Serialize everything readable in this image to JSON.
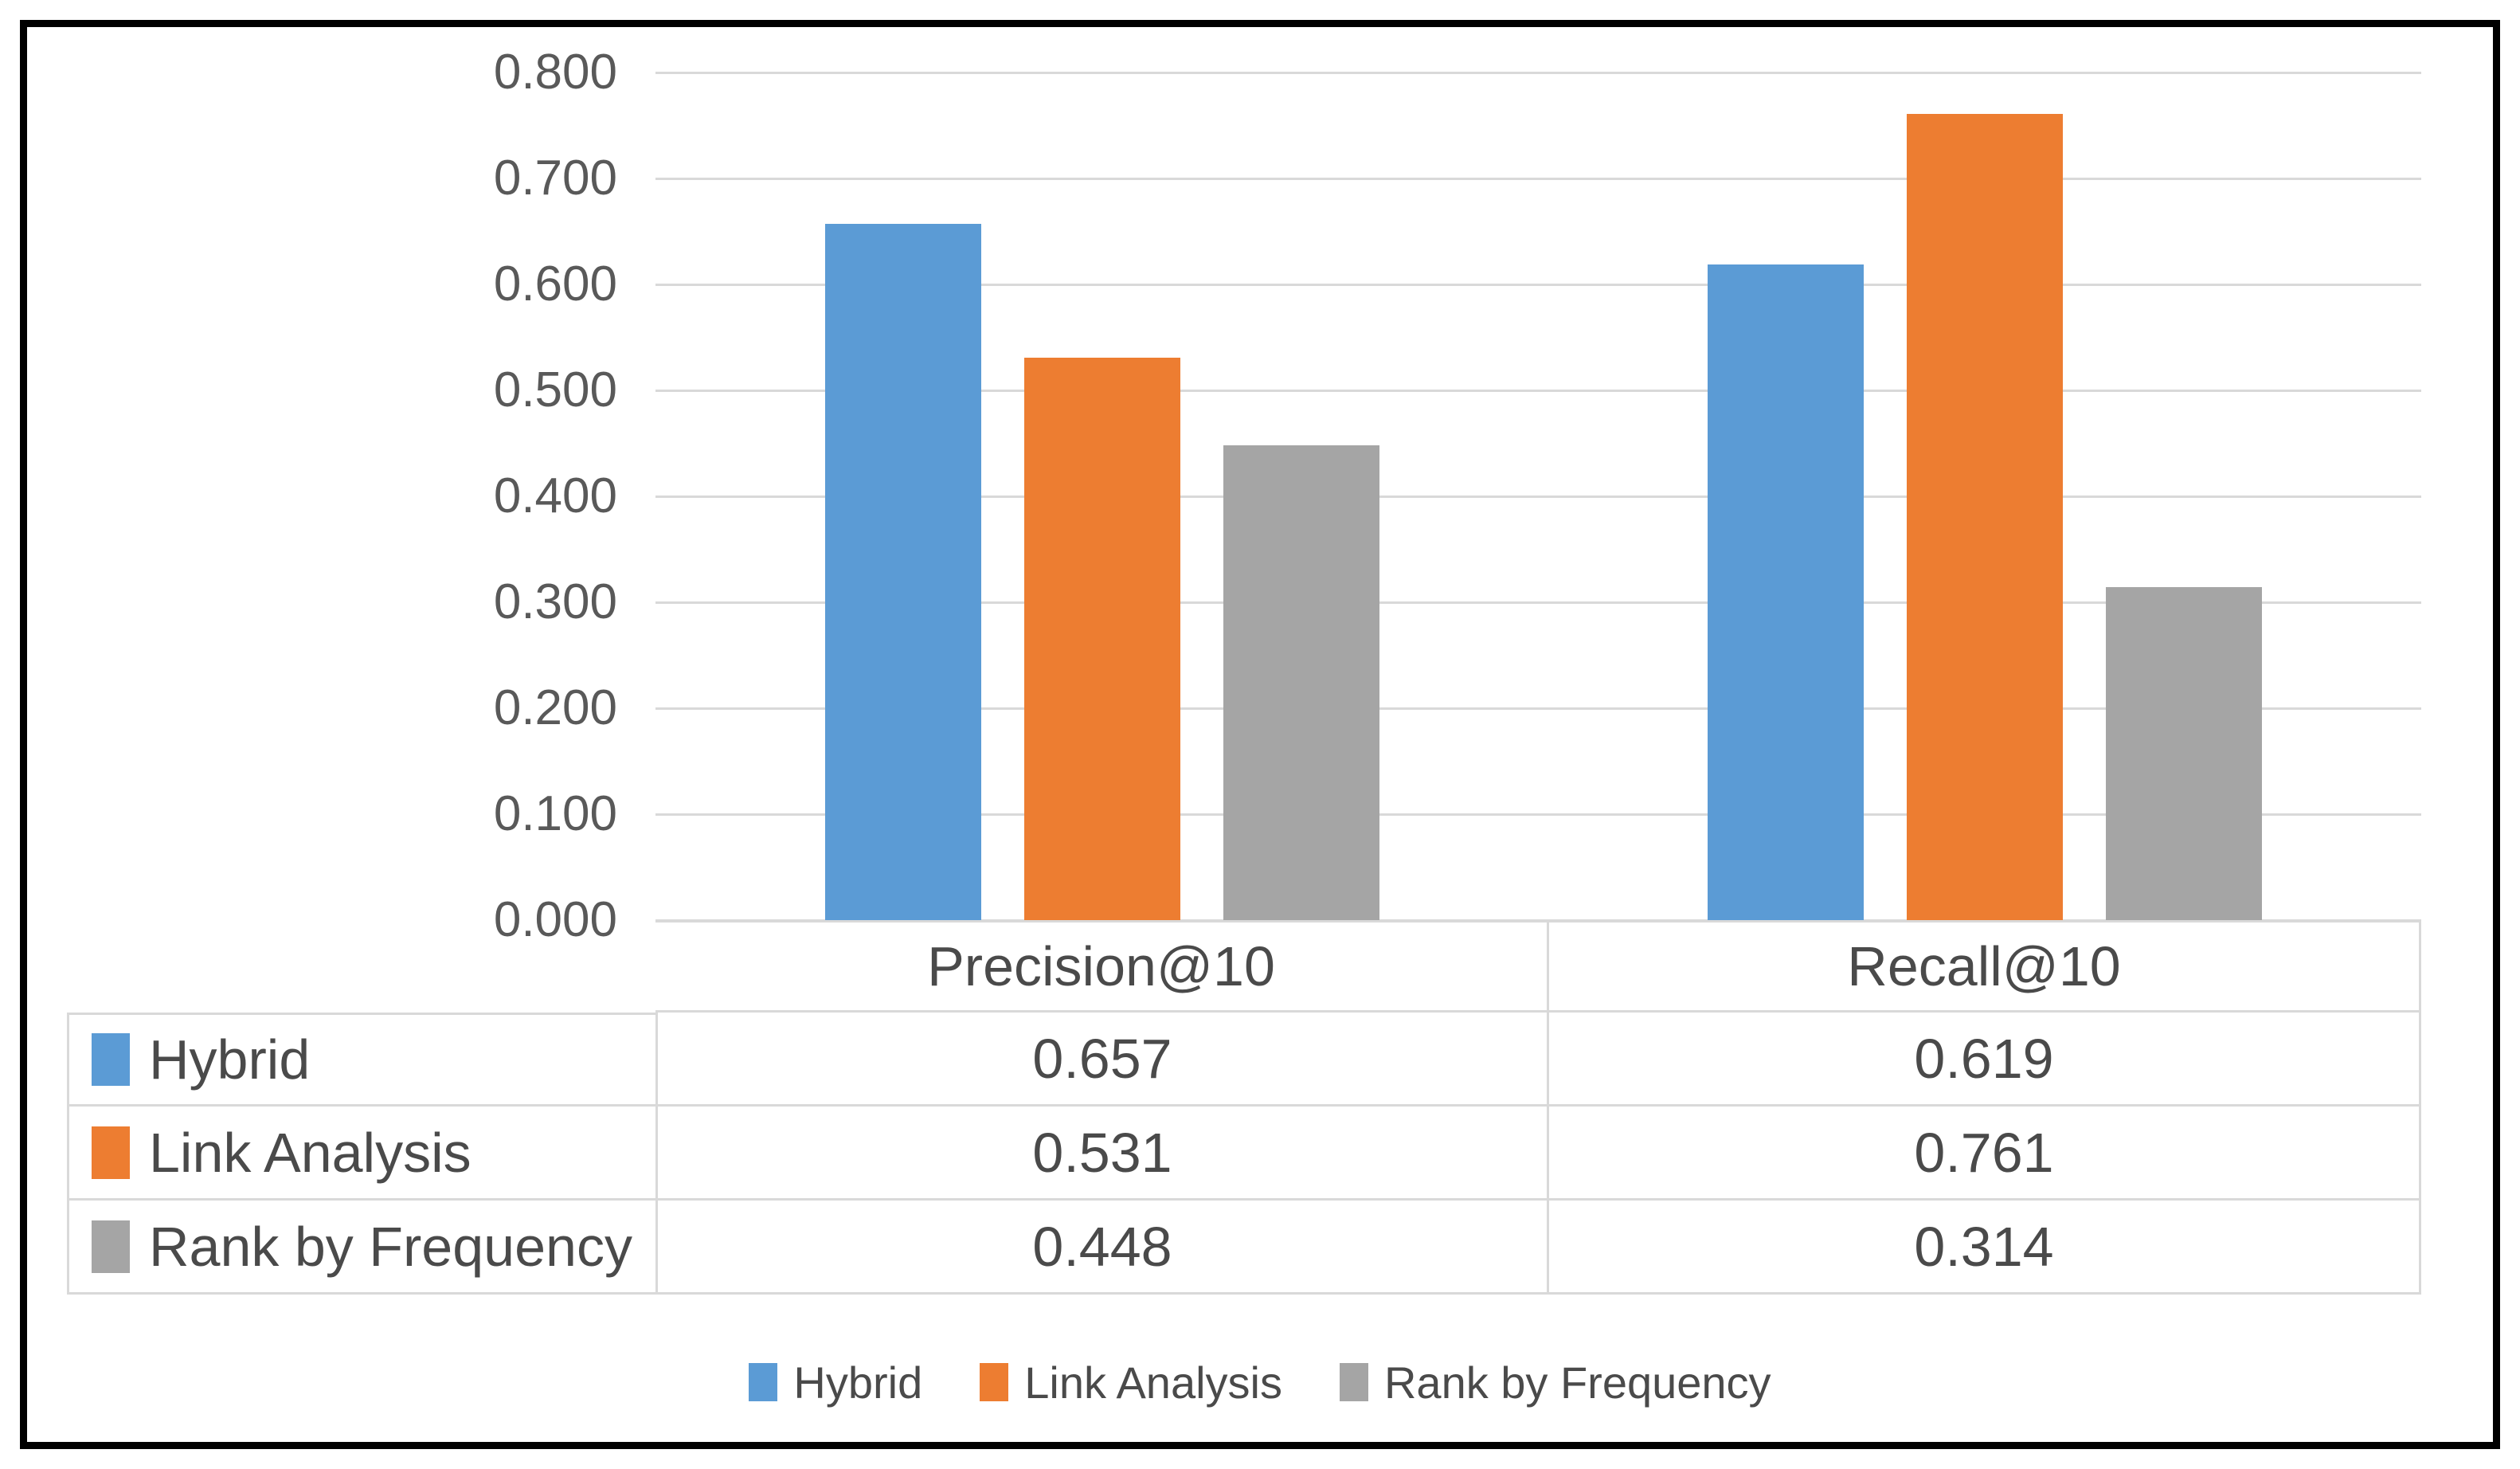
{
  "chart_data": {
    "type": "bar",
    "title": "",
    "xlabel": "",
    "ylabel": "",
    "categories": [
      "Precision@10",
      "Recall@10"
    ],
    "series": [
      {
        "name": "Hybrid",
        "color": "#5B9BD5",
        "values": [
          0.657,
          0.619
        ]
      },
      {
        "name": "Link Analysis",
        "color": "#ED7D31",
        "values": [
          0.531,
          0.761
        ]
      },
      {
        "name": "Rank by Frequency",
        "color": "#A5A5A5",
        "values": [
          0.448,
          0.314
        ]
      }
    ],
    "ylim": [
      0,
      0.8
    ],
    "ytick_step": 0.1,
    "yticks": [
      "0.800",
      "0.700",
      "0.600",
      "0.500",
      "0.400",
      "0.300",
      "0.200",
      "0.100",
      "0.000"
    ],
    "grid": true,
    "gridline_color": "#d9d9d9",
    "legend_position": "bottom",
    "has_data_table": true
  },
  "table": {
    "column_headers": [
      "Precision@10",
      "Recall@10"
    ],
    "rows": [
      {
        "label": "Hybrid",
        "swatch": "#5B9BD5",
        "values": [
          "0.657",
          "0.619"
        ]
      },
      {
        "label": "Link Analysis",
        "swatch": "#ED7D31",
        "values": [
          "0.531",
          "0.761"
        ]
      },
      {
        "label": "Rank by Frequency",
        "swatch": "#A5A5A5",
        "values": [
          "0.448",
          "0.314"
        ]
      }
    ]
  },
  "legend": {
    "items": [
      {
        "label": "Hybrid",
        "color": "#5B9BD5"
      },
      {
        "label": "Link Analysis",
        "color": "#ED7D31"
      },
      {
        "label": "Rank by Frequency",
        "color": "#A5A5A5"
      }
    ]
  },
  "colors": {
    "frame_border": "#000000",
    "gridline": "#d9d9d9",
    "table_border": "#d9d9d9",
    "axis_text": "#595959",
    "table_text": "#4a4a4a"
  }
}
